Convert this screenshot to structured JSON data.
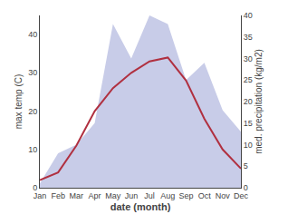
{
  "chart_data": {
    "type": "line",
    "categories": [
      "Jan",
      "Feb",
      "Mar",
      "Apr",
      "May",
      "Jun",
      "Jul",
      "Aug",
      "Sep",
      "Oct",
      "Nov",
      "Dec"
    ],
    "series": [
      {
        "type": "area",
        "color": "#c8cce8",
        "axis": "y2",
        "values": [
          1,
          8,
          10,
          15,
          38,
          30,
          40,
          38,
          25,
          29,
          18,
          13
        ]
      },
      {
        "type": "line",
        "color": "#b03040",
        "values": [
          2,
          4,
          11,
          20,
          26,
          30,
          33,
          34,
          28,
          18,
          10,
          5
        ]
      }
    ],
    "xlabel": "date (month)",
    "ylabel": "max temp (C)",
    "y2label": "med. precipitation (kg/m2)",
    "ylim": [
      0,
      45
    ],
    "yticks": [
      0,
      10,
      20,
      30,
      40
    ],
    "y2lim": [
      0,
      40
    ],
    "y2ticks": [
      0,
      5,
      10,
      15,
      20,
      25,
      30,
      35,
      40
    ],
    "grid": false
  }
}
